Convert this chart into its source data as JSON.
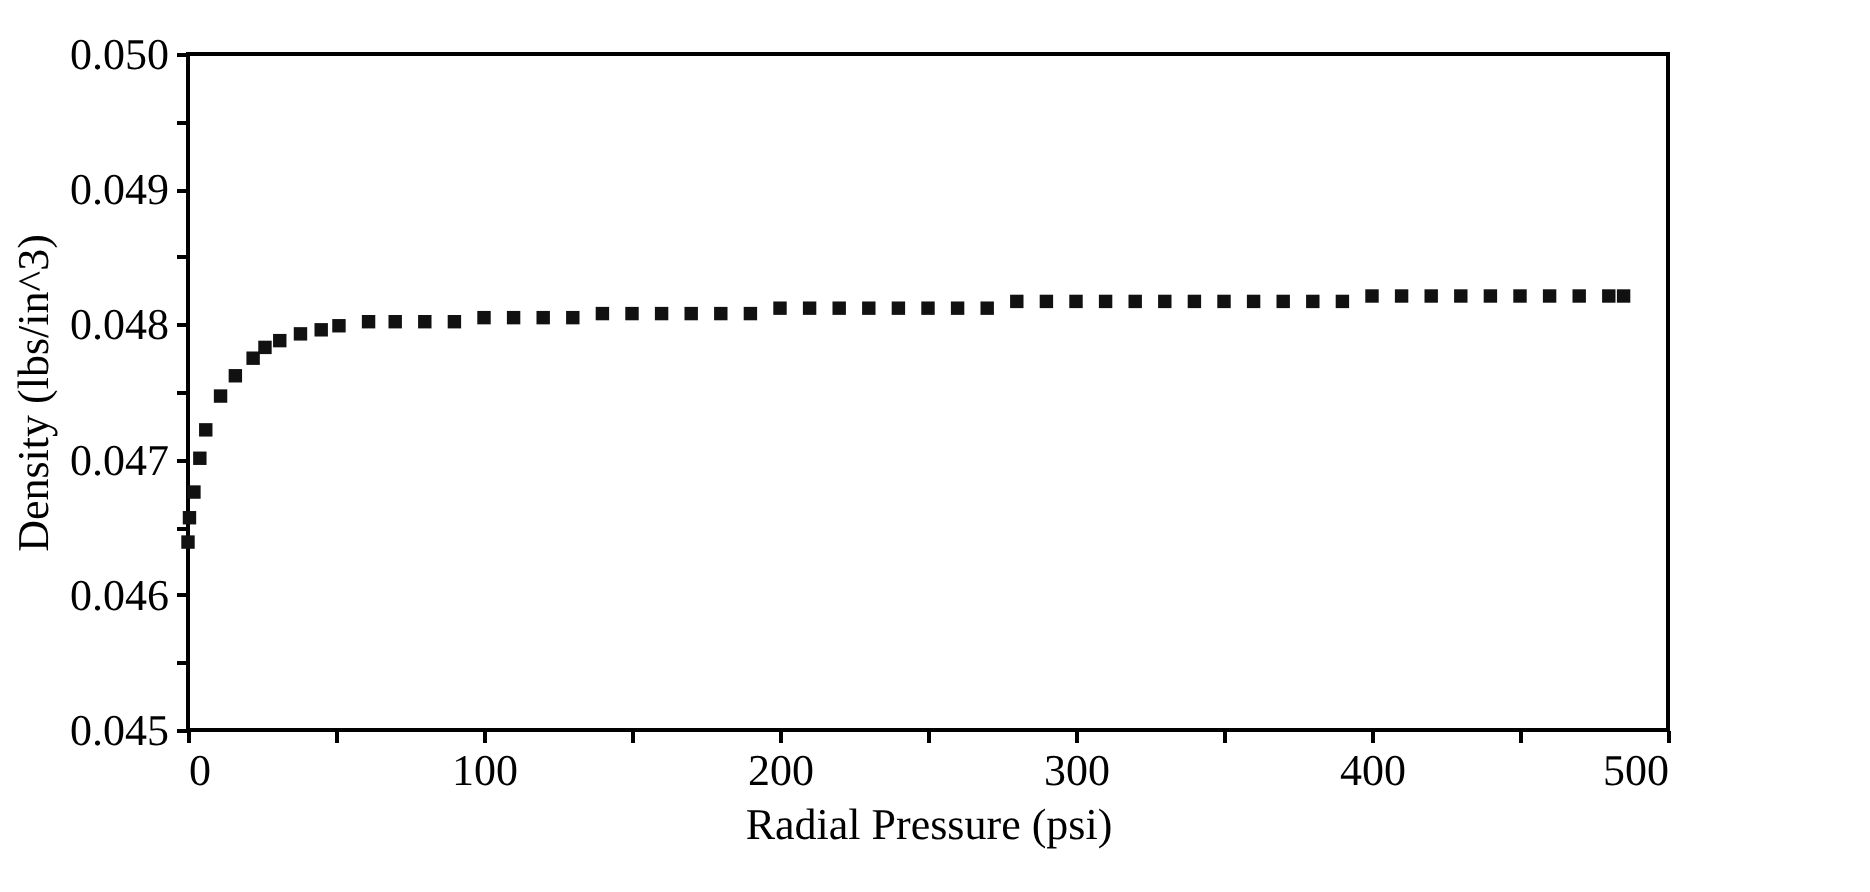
{
  "chart_data": {
    "type": "scatter",
    "xlabel": "Radial Pressure (psi)",
    "ylabel": "Density (lbs/in^3)",
    "x": [
      0,
      0.5,
      2,
      4,
      6,
      11,
      16,
      22,
      26,
      31,
      38,
      45,
      51,
      61,
      70,
      80,
      90,
      100,
      110,
      120,
      130,
      140,
      150,
      160,
      170,
      180,
      190,
      200,
      210,
      220,
      230,
      240,
      250,
      260,
      270,
      280,
      290,
      300,
      310,
      320,
      330,
      340,
      350,
      360,
      370,
      380,
      390,
      400,
      410,
      420,
      430,
      440,
      450,
      460,
      470,
      480,
      485
    ],
    "series": [
      {
        "color": "#111111",
        "values": [
          0.04639,
          0.04657,
          0.04676,
          0.04701,
          0.04722,
          0.04747,
          0.04762,
          0.04775,
          0.04783,
          0.04788,
          0.04793,
          0.04796,
          0.04799,
          0.04802,
          0.04802,
          0.04802,
          0.04802,
          0.04805,
          0.04805,
          0.04805,
          0.04805,
          0.04808,
          0.04808,
          0.04808,
          0.04808,
          0.04808,
          0.04808,
          0.04812,
          0.04812,
          0.04812,
          0.04812,
          0.04812,
          0.04812,
          0.04812,
          0.04812,
          0.04817,
          0.04817,
          0.04817,
          0.04817,
          0.04817,
          0.04817,
          0.04817,
          0.04817,
          0.04817,
          0.04817,
          0.04817,
          0.04817,
          0.04821,
          0.04821,
          0.04821,
          0.04821,
          0.04821,
          0.04821,
          0.04821,
          0.04821,
          0.04821,
          0.04821
        ]
      }
    ],
    "marker": "square",
    "grid": false,
    "xlim": [
      0,
      500
    ],
    "xticks": [
      0,
      {
        "value": 50,
        "label": null
      },
      100,
      {
        "value": 150,
        "label": null
      },
      200,
      {
        "value": 250,
        "label": null
      },
      300,
      {
        "value": 350,
        "label": null
      },
      400,
      {
        "value": 450,
        "label": null
      },
      500
    ],
    "ylim": [
      0.045,
      0.05
    ],
    "yticks": [
      {
        "value": 0.045,
        "label": "0.045"
      },
      {
        "value": 0.0455,
        "label": null
      },
      {
        "value": 0.046,
        "label": "0.046"
      },
      {
        "value": 0.0465,
        "label": null
      },
      {
        "value": 0.047,
        "label": "0.047"
      },
      {
        "value": 0.0475,
        "label": null
      },
      {
        "value": 0.048,
        "label": "0.048"
      },
      {
        "value": 0.0485,
        "label": null
      },
      {
        "value": 0.049,
        "label": "0.049"
      },
      {
        "value": 0.0495,
        "label": null
      },
      {
        "value": 0.05,
        "label": "0.050"
      }
    ]
  }
}
